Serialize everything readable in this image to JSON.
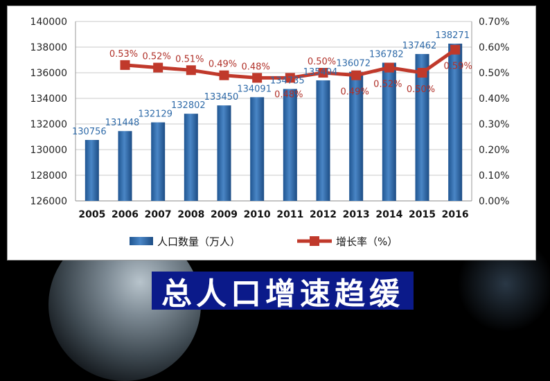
{
  "caption": "总人口增速趋缓",
  "chart_data": {
    "type": "bar",
    "categories": [
      "2005",
      "2006",
      "2007",
      "2008",
      "2009",
      "2010",
      "2011",
      "2012",
      "2013",
      "2014",
      "2015",
      "2016"
    ],
    "series": [
      {
        "name": "人口数量（万人）",
        "type": "bar",
        "axis": "left",
        "color": "#2e6aa8",
        "values": [
          130756,
          131448,
          132129,
          132802,
          133450,
          134091,
          134735,
          135404,
          136072,
          136782,
          137462,
          138271
        ],
        "labels": [
          "130756",
          "131448",
          "132129",
          "132802",
          "133450",
          "134091",
          "134735",
          "135404",
          "136072",
          "136782",
          "137462",
          "138271"
        ]
      },
      {
        "name": "增长率（%）",
        "type": "line",
        "axis": "right",
        "color": "#c0392b",
        "values": [
          null,
          0.53,
          0.52,
          0.51,
          0.49,
          0.48,
          0.48,
          0.5,
          0.49,
          0.52,
          0.5,
          0.59
        ],
        "labels": [
          "",
          "0.53%",
          "0.52%",
          "0.51%",
          "0.49%",
          "0.48%",
          "0.48%",
          "0.50%",
          "0.49%",
          "0.52%",
          "0.50%",
          "0.59%"
        ]
      }
    ],
    "y_left": {
      "lim": [
        126000,
        140000
      ],
      "ticks": [
        "126000",
        "128000",
        "130000",
        "132000",
        "134000",
        "136000",
        "138000",
        "140000"
      ]
    },
    "y_right": {
      "lim": [
        0,
        0.7
      ],
      "ticks": [
        "0.00%",
        "0.10%",
        "0.20%",
        "0.30%",
        "0.40%",
        "0.50%",
        "0.60%",
        "0.70%"
      ]
    },
    "grid": true,
    "legend_position": "bottom"
  }
}
